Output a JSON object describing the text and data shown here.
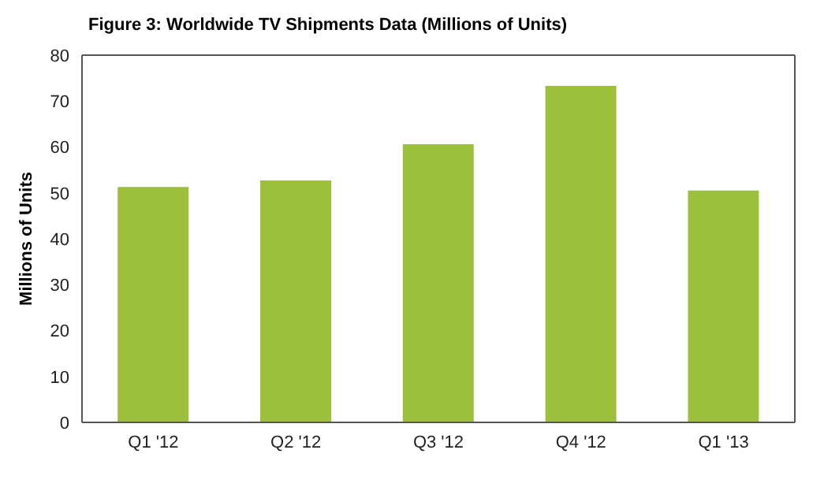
{
  "chart_data": {
    "type": "bar",
    "title": "Figure 3: Worldwide TV Shipments Data (Millions of Units)",
    "ylabel": "Millions of Units",
    "categories": [
      "Q1 '12",
      "Q2 '12",
      "Q3 '12",
      "Q4 '12",
      "Q1 '13"
    ],
    "values": [
      51.3,
      52.7,
      60.6,
      73.3,
      50.5
    ],
    "color": "#9dc03c",
    "ylim": [
      0,
      80
    ],
    "yticks": [
      0,
      10,
      20,
      30,
      40,
      50,
      60,
      70,
      80
    ],
    "grid": false
  }
}
